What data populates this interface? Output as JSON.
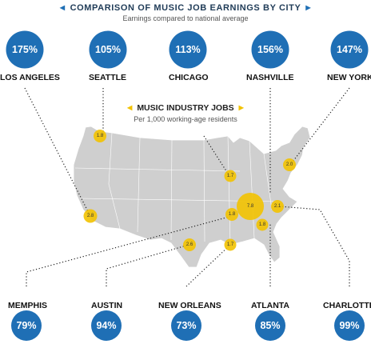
{
  "header": {
    "title": "COMPARISON OF MUSIC JOB EARNINGS BY CITY",
    "subtitle": "Earnings compared to national average"
  },
  "jobs_key": {
    "title": "MUSIC INDUSTRY JOBS",
    "subtitle": "Per 1,000 working-age residents"
  },
  "colors": {
    "earnings_circle": "#1f6fb5",
    "jobs_bubble": "#f2c200",
    "map_fill": "#cfcfcf",
    "accent_triangle_blue": "#1f6fb5",
    "accent_triangle_gold": "#f2c200"
  },
  "top_cities": [
    {
      "name": "LOS ANGELES",
      "earnings": "175%",
      "jobs": "2.8"
    },
    {
      "name": "SEATTLE",
      "earnings": "105%",
      "jobs": "1.8"
    },
    {
      "name": "CHICAGO",
      "earnings": "113%",
      "jobs": "1.7"
    },
    {
      "name": "NASHVILLE",
      "earnings": "156%",
      "jobs": "7.8"
    },
    {
      "name": "NEW YORK",
      "earnings": "147%",
      "jobs": "2.0"
    }
  ],
  "bottom_cities": [
    {
      "name": "MEMPHIS",
      "earnings": "79%",
      "jobs": "1.8"
    },
    {
      "name": "AUSTIN",
      "earnings": "94%",
      "jobs": "2.6"
    },
    {
      "name": "NEW ORLEANS",
      "earnings": "73%",
      "jobs": "1.7"
    },
    {
      "name": "ATLANTA",
      "earnings": "85%",
      "jobs": "1.8"
    },
    {
      "name": "CHARLOTTE",
      "earnings": "99%",
      "jobs": "2.1"
    }
  ]
}
